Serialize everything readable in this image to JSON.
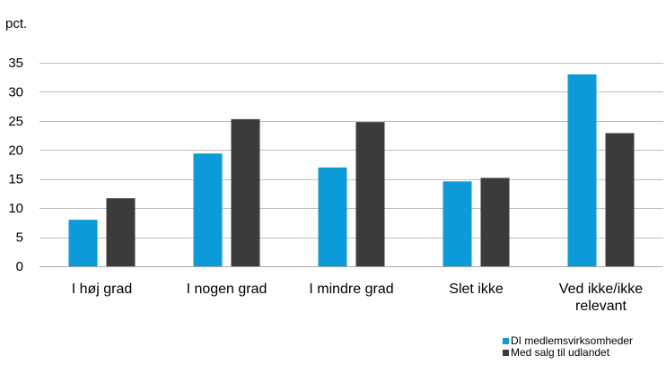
{
  "chart_data": {
    "type": "bar",
    "unit_label": "pct.",
    "title": "",
    "xlabel": "",
    "ylabel": "",
    "categories": [
      [
        "I høj grad"
      ],
      [
        "I nogen grad"
      ],
      [
        "I mindre grad"
      ],
      [
        "Slet ikke"
      ],
      [
        "Ved ikke/ikke",
        "relevant"
      ]
    ],
    "series": [
      {
        "name": "DI medlemsvirksomheder",
        "color": "#0d9ad8",
        "values": [
          8,
          19.4,
          17,
          14.6,
          33
        ]
      },
      {
        "name": "Med salg til udlandet",
        "color": "#3b3b3b",
        "values": [
          11.7,
          25.3,
          24.8,
          15.2,
          22.9
        ]
      }
    ],
    "ylim": [
      0,
      35
    ],
    "yticks": [
      0,
      5,
      10,
      15,
      20,
      25,
      30,
      35
    ],
    "grid": true,
    "legend_position": "bottom-right"
  }
}
